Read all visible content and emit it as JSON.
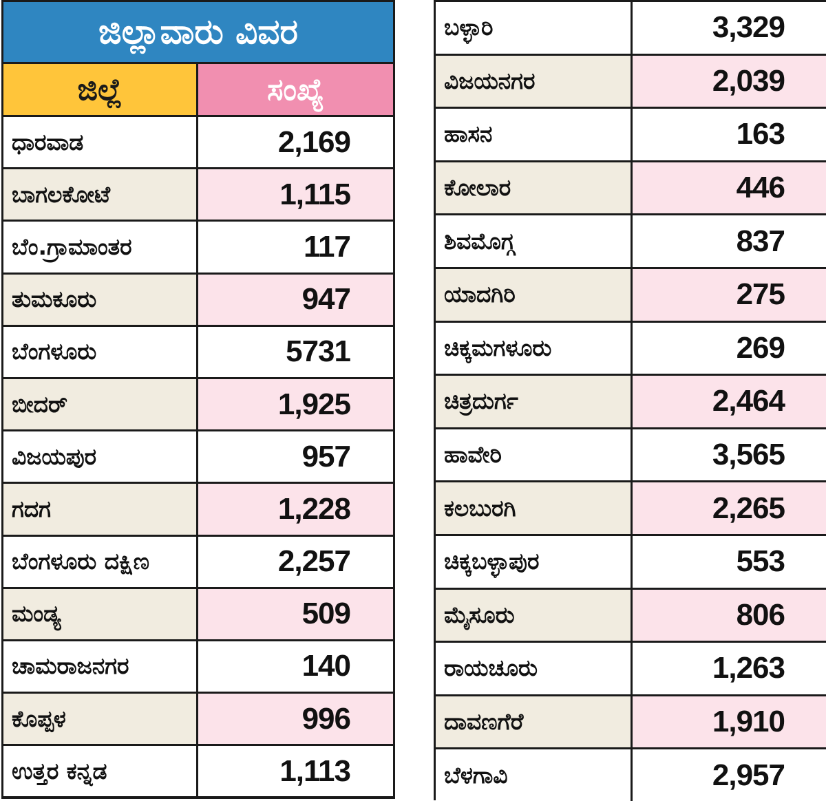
{
  "title": "ಜಿಲ್ಲಾವಾರು ವಿವರ",
  "headers": {
    "district": "ಜಿಲ್ಲೆ",
    "count": "ಸಂಖ್ಯೆ"
  },
  "colors": {
    "banner": "#2f86c1",
    "district_header": "#ffc53a",
    "count_header": "#f18fb0",
    "stripe_name": "#f1ece0",
    "stripe_count": "#fce3ea"
  },
  "left_rows": [
    {
      "district": "ಧಾರವಾಡ",
      "count": "2,169"
    },
    {
      "district": "ಬಾಗಲಕೋಟೆ",
      "count": "1,115"
    },
    {
      "district": "ಬೆಂ.ಗ್ರಾಮಾಂತರ",
      "count": "117"
    },
    {
      "district": "ತುಮಕೂರು",
      "count": "947"
    },
    {
      "district": "ಬೆಂಗಳೂರು",
      "count": "5731"
    },
    {
      "district": "ಬೀದರ್",
      "count": "1,925"
    },
    {
      "district": "ವಿಜಯಪುರ",
      "count": "957"
    },
    {
      "district": "ಗದಗ",
      "count": "1,228"
    },
    {
      "district": "ಬೆಂಗಳೂರು ದಕ್ಷಿಣ",
      "count": "2,257"
    },
    {
      "district": "ಮಂಡ್ಯ",
      "count": "509"
    },
    {
      "district": "ಚಾಮರಾಜನಗರ",
      "count": "140"
    },
    {
      "district": "ಕೊಪ್ಪಳ",
      "count": "996"
    },
    {
      "district": "ಉತ್ತರ ಕನ್ನಡ",
      "count": "1,113"
    }
  ],
  "right_rows": [
    {
      "district": "ಬಳ್ಳಾರಿ",
      "count": "3,329"
    },
    {
      "district": "ವಿಜಯನಗರ",
      "count": "2,039"
    },
    {
      "district": "ಹಾಸನ",
      "count": "163"
    },
    {
      "district": "ಕೋಲಾರ",
      "count": "446"
    },
    {
      "district": "ಶಿವಮೊಗ್ಗ",
      "count": "837"
    },
    {
      "district": "ಯಾದಗಿರಿ",
      "count": "275"
    },
    {
      "district": "ಚಿಕ್ಕಮಗಳೂರು",
      "count": "269"
    },
    {
      "district": "ಚಿತ್ರದುರ್ಗ",
      "count": "2,464"
    },
    {
      "district": "ಹಾವೇರಿ",
      "count": "3,565"
    },
    {
      "district": "ಕಲಬುರಗಿ",
      "count": "2,265"
    },
    {
      "district": "ಚಿಕ್ಕಬಳ್ಳಾಪುರ",
      "count": "553"
    },
    {
      "district": "ಮೈಸೂರು",
      "count": "806"
    },
    {
      "district": "ರಾಯಚೂರು",
      "count": "1,263"
    },
    {
      "district": "ದಾವಣಗೆರೆ",
      "count": "1,910"
    },
    {
      "district": "ಬೆಳಗಾವಿ",
      "count": "2,957"
    }
  ]
}
